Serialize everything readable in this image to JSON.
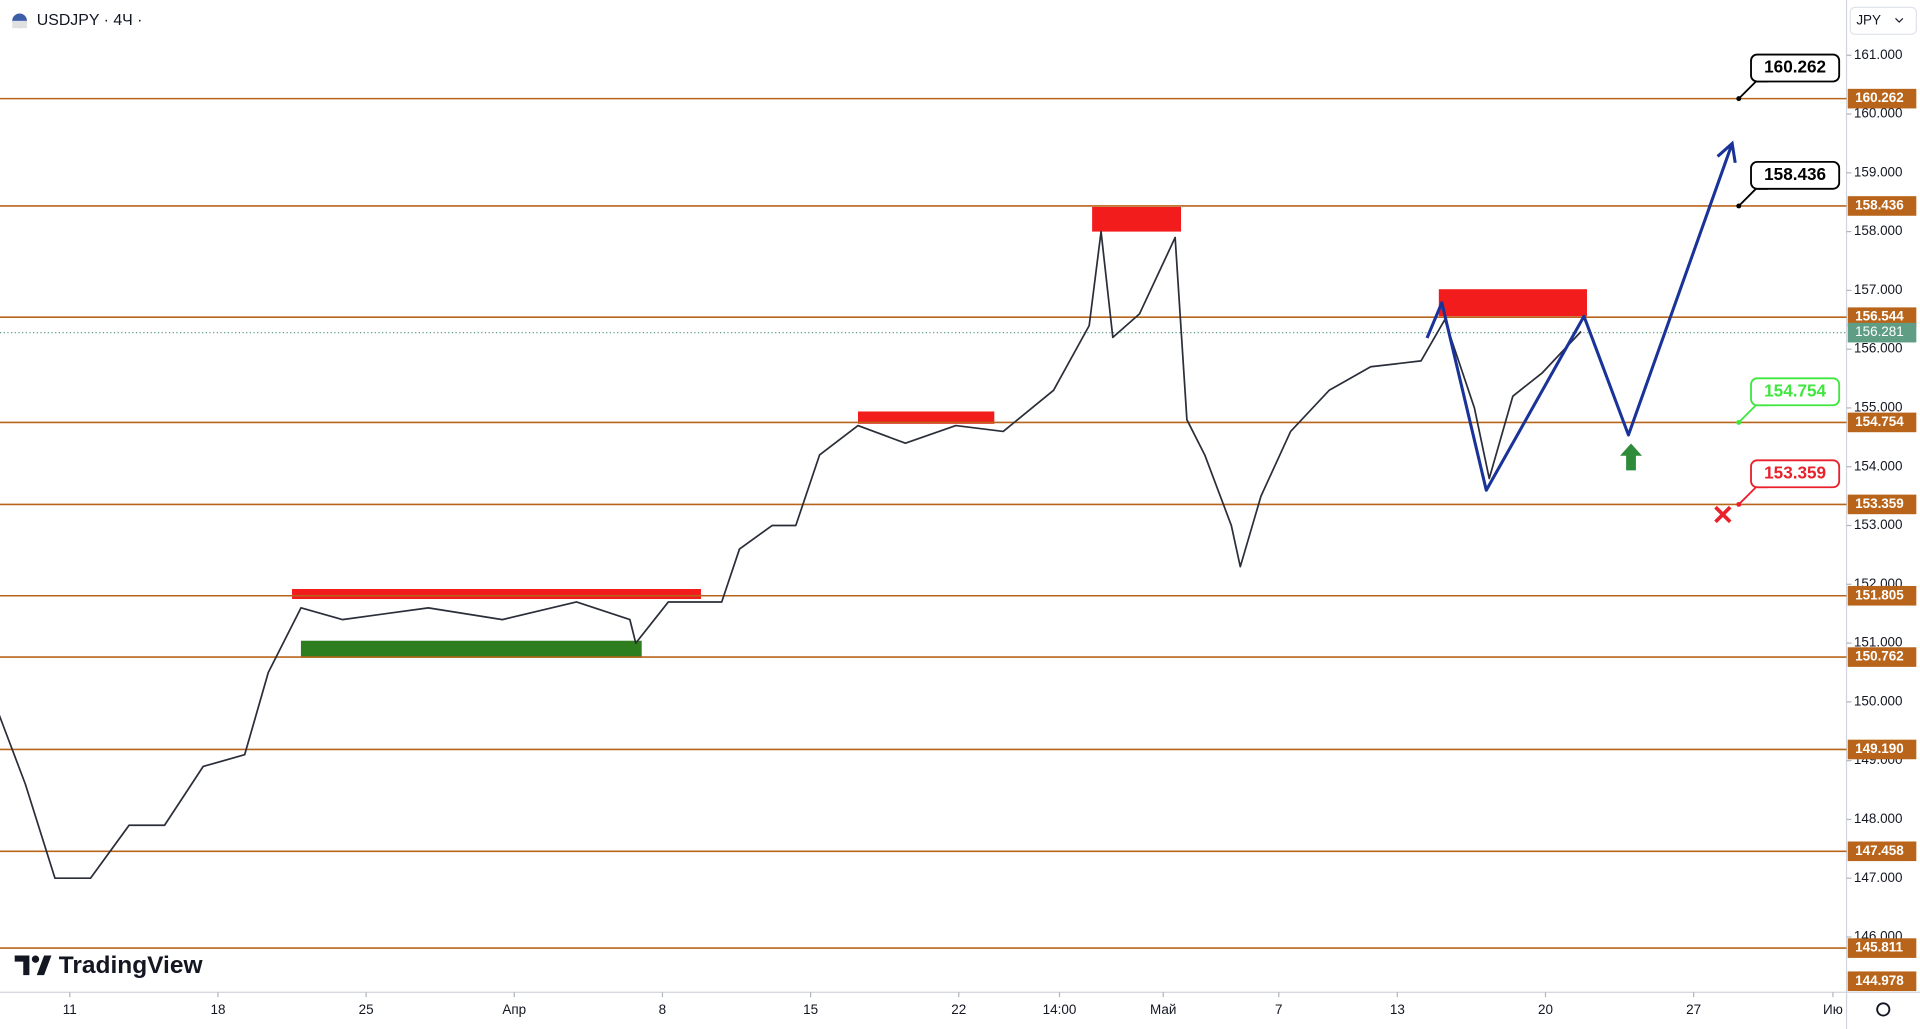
{
  "chart_data": {
    "type": "line",
    "title": "USDJPY · 4Ч ·",
    "currency": "JPY",
    "branding": "TradingView",
    "xlim": [
      -2.355,
      59.959
    ],
    "ylim": [
      145.06,
      161.94
    ],
    "xticks": [
      {
        "value": 0,
        "label": "11"
      },
      {
        "value": 5,
        "label": "18"
      },
      {
        "value": 10,
        "label": "25"
      },
      {
        "value": 15,
        "label": "Апр"
      },
      {
        "value": 20,
        "label": "8"
      },
      {
        "value": 25,
        "label": "15"
      },
      {
        "value": 30,
        "label": "22"
      },
      {
        "value": 33.4,
        "label": "14:00"
      },
      {
        "value": 36.9,
        "label": "Май"
      },
      {
        "value": 40.8,
        "label": "7"
      },
      {
        "value": 44.8,
        "label": "13"
      },
      {
        "value": 49.8,
        "label": "20"
      },
      {
        "value": 54.8,
        "label": "27"
      },
      {
        "value": 59.5,
        "label": "Ию"
      }
    ],
    "yticks": [
      {
        "value": 146,
        "label": "146.000"
      },
      {
        "value": 147,
        "label": "147.000"
      },
      {
        "value": 148,
        "label": "148.000"
      },
      {
        "value": 149,
        "label": "149.000"
      },
      {
        "value": 150,
        "label": "150.000"
      },
      {
        "value": 151,
        "label": "151.000"
      },
      {
        "value": 152,
        "label": "152.000"
      },
      {
        "value": 153,
        "label": "153.000"
      },
      {
        "value": 154,
        "label": "154.000"
      },
      {
        "value": 155,
        "label": "155.000"
      },
      {
        "value": 156,
        "label": "156.000"
      },
      {
        "value": 157,
        "label": "157.000"
      },
      {
        "value": 158,
        "label": "158.000"
      },
      {
        "value": 159,
        "label": "159.000"
      },
      {
        "value": 160,
        "label": "160.000"
      },
      {
        "value": 161,
        "label": "161.000"
      }
    ],
    "level_color": "#b8651b",
    "levels": [
      160.262,
      158.436,
      156.544,
      154.754,
      153.359,
      151.805,
      150.762,
      {
        "value": 149.19,
        "label": "149.190"
      },
      147.458,
      145.811,
      144.978
    ],
    "last_price": 156.281,
    "last_price_color": "#5f9e84",
    "series": [
      {
        "color": "#2a2e39",
        "x": [
          -2.4,
          -1.5,
          -0.5,
          0.7,
          2.0,
          3.2,
          4.5,
          5.9,
          6.7,
          7.8,
          9.2,
          12.1,
          14.6,
          17.1,
          18.9,
          19.1,
          20.2,
          22.0,
          22.6,
          23.7,
          24.5,
          25.3,
          26.6,
          28.2,
          29.9,
          31.5,
          33.2,
          34.4,
          34.8,
          35.2,
          36.1,
          37.3,
          37.7,
          38.3,
          39.2,
          39.5,
          40.2,
          41.2,
          42.5,
          43.9,
          45.6,
          46.4,
          47.4,
          47.9,
          48.7,
          49.7,
          51.0
        ],
        "values": [
          149.8,
          148.6,
          147.0,
          147.0,
          147.9,
          147.9,
          148.9,
          149.1,
          150.5,
          151.6,
          151.4,
          151.6,
          151.4,
          151.7,
          151.4,
          151.0,
          151.7,
          151.7,
          152.6,
          153.0,
          153.0,
          154.2,
          154.7,
          154.4,
          154.7,
          154.6,
          155.3,
          156.4,
          158.0,
          156.2,
          156.6,
          157.9,
          154.8,
          154.2,
          153.0,
          152.3,
          153.5,
          154.6,
          155.3,
          155.7,
          155.8,
          156.5,
          155.0,
          153.8,
          155.2,
          155.6,
          156.3
        ]
      },
      {
        "color": "#1a3399",
        "x": [
          45.8,
          46.3,
          47.8,
          51.1,
          52.6,
          56.1
        ],
        "values": [
          156.19,
          156.79,
          153.6,
          156.56,
          154.54,
          159.5
        ]
      }
    ],
    "zones": [
      {
        "x": [
          7.5,
          21.3
        ],
        "y": [
          151.75,
          151.92
        ],
        "color": "#f21c1c"
      },
      {
        "x": [
          7.8,
          19.3
        ],
        "y": [
          150.75,
          151.04
        ],
        "color": "#2e7d1f"
      },
      {
        "x": [
          26.6,
          31.2
        ],
        "y": [
          154.73,
          154.94
        ],
        "color": "#f21c1c"
      },
      {
        "x": [
          34.5,
          37.5
        ],
        "y": [
          158.0,
          158.42
        ],
        "color": "#f21c1c"
      },
      {
        "x": [
          46.2,
          51.2
        ],
        "y": [
          156.56,
          157.02
        ],
        "color": "#f21c1c"
      }
    ],
    "callouts": [
      {
        "value": 160.262,
        "color": "#000000"
      },
      {
        "value": 158.436,
        "color": "#000000"
      },
      {
        "value": 154.754,
        "color": "#3ee63e"
      },
      {
        "value": 153.359,
        "color": "#e8212b"
      }
    ]
  }
}
